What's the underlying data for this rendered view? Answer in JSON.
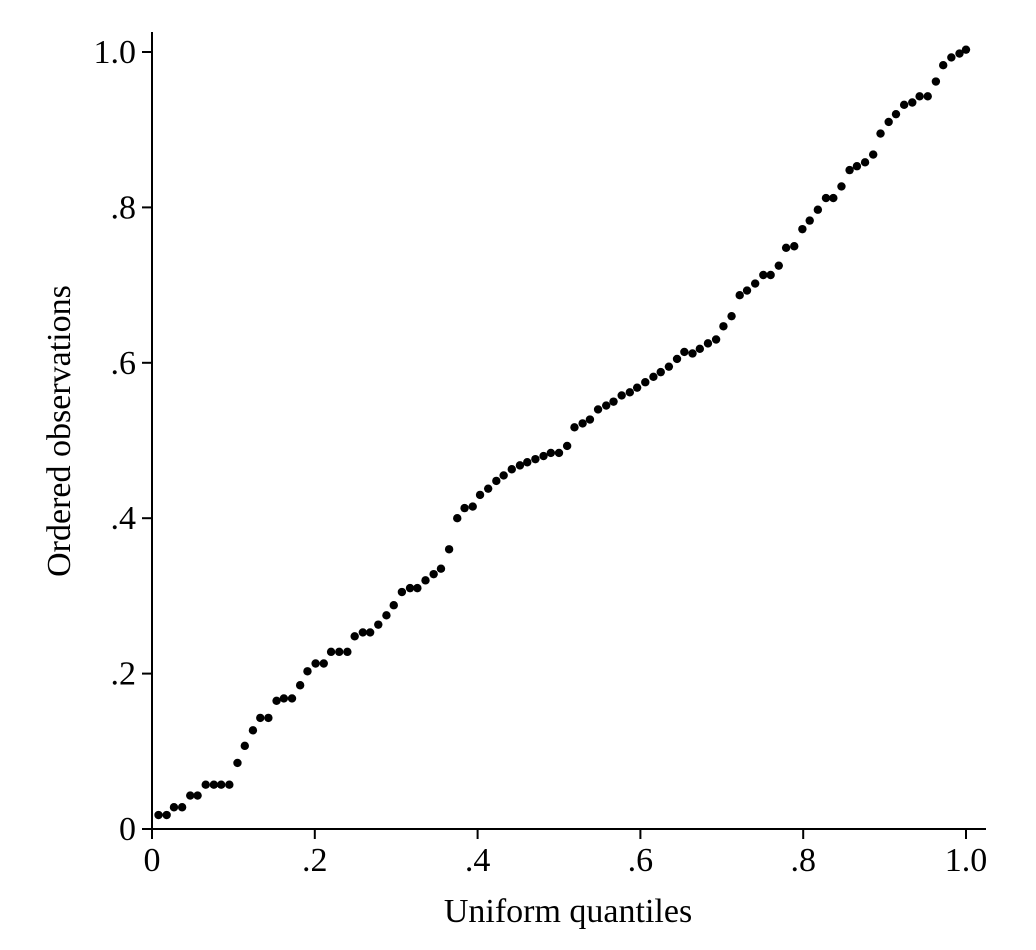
{
  "chart_data": {
    "type": "scatter",
    "title": "",
    "xlabel": "Uniform quantiles",
    "ylabel": "Ordered observations",
    "xlim": [
      0,
      1.0
    ],
    "ylim": [
      0,
      1.0
    ],
    "grid": false,
    "x_ticks": [
      {
        "value": 0,
        "label": "0"
      },
      {
        "value": 0.2,
        "label": ".2"
      },
      {
        "value": 0.4,
        "label": ".4"
      },
      {
        "value": 0.6,
        "label": ".6"
      },
      {
        "value": 0.8,
        "label": ".8"
      },
      {
        "value": 1.0,
        "label": "1.0"
      }
    ],
    "y_ticks": [
      {
        "value": 0,
        "label": "0"
      },
      {
        "value": 0.2,
        "label": ".2"
      },
      {
        "value": 0.4,
        "label": ".4"
      },
      {
        "value": 0.6,
        "label": ".6"
      },
      {
        "value": 0.8,
        "label": ".8"
      },
      {
        "value": 1.0,
        "label": "1.0"
      }
    ],
    "point_color": "#000000",
    "x": [
      0.008,
      0.018,
      0.027,
      0.037,
      0.047,
      0.056,
      0.066,
      0.076,
      0.085,
      0.095,
      0.105,
      0.114,
      0.124,
      0.133,
      0.143,
      0.153,
      0.162,
      0.172,
      0.182,
      0.191,
      0.201,
      0.211,
      0.22,
      0.23,
      0.24,
      0.249,
      0.259,
      0.268,
      0.278,
      0.288,
      0.297,
      0.307,
      0.317,
      0.326,
      0.336,
      0.346,
      0.355,
      0.365,
      0.375,
      0.384,
      0.394,
      0.403,
      0.413,
      0.423,
      0.432,
      0.442,
      0.452,
      0.461,
      0.471,
      0.481,
      0.49,
      0.5,
      0.51,
      0.519,
      0.529,
      0.538,
      0.548,
      0.558,
      0.567,
      0.577,
      0.587,
      0.596,
      0.606,
      0.616,
      0.625,
      0.635,
      0.645,
      0.654,
      0.664,
      0.673,
      0.683,
      0.693,
      0.702,
      0.712,
      0.722,
      0.731,
      0.741,
      0.751,
      0.76,
      0.77,
      0.779,
      0.789,
      0.799,
      0.808,
      0.818,
      0.828,
      0.837,
      0.847,
      0.857,
      0.866,
      0.876,
      0.886,
      0.895,
      0.905,
      0.914,
      0.924,
      0.934,
      0.943,
      0.953,
      0.963,
      0.972,
      0.982,
      0.992,
      1.0
    ],
    "y": [
      0.018,
      0.018,
      0.028,
      0.028,
      0.043,
      0.043,
      0.057,
      0.057,
      0.057,
      0.057,
      0.085,
      0.107,
      0.127,
      0.143,
      0.143,
      0.165,
      0.168,
      0.168,
      0.185,
      0.203,
      0.213,
      0.213,
      0.228,
      0.228,
      0.228,
      0.248,
      0.253,
      0.253,
      0.263,
      0.275,
      0.288,
      0.305,
      0.31,
      0.31,
      0.32,
      0.328,
      0.335,
      0.36,
      0.4,
      0.413,
      0.415,
      0.43,
      0.438,
      0.448,
      0.455,
      0.463,
      0.468,
      0.472,
      0.476,
      0.48,
      0.484,
      0.484,
      0.493,
      0.517,
      0.522,
      0.527,
      0.54,
      0.545,
      0.55,
      0.558,
      0.562,
      0.568,
      0.575,
      0.582,
      0.588,
      0.595,
      0.605,
      0.614,
      0.612,
      0.618,
      0.625,
      0.63,
      0.647,
      0.66,
      0.687,
      0.693,
      0.702,
      0.713,
      0.713,
      0.725,
      0.748,
      0.75,
      0.772,
      0.783,
      0.797,
      0.812,
      0.812,
      0.827,
      0.848,
      0.853,
      0.858,
      0.868,
      0.895,
      0.91,
      0.92,
      0.932,
      0.935,
      0.943,
      0.943,
      0.962,
      0.983,
      0.993,
      0.998,
      1.003
    ]
  }
}
